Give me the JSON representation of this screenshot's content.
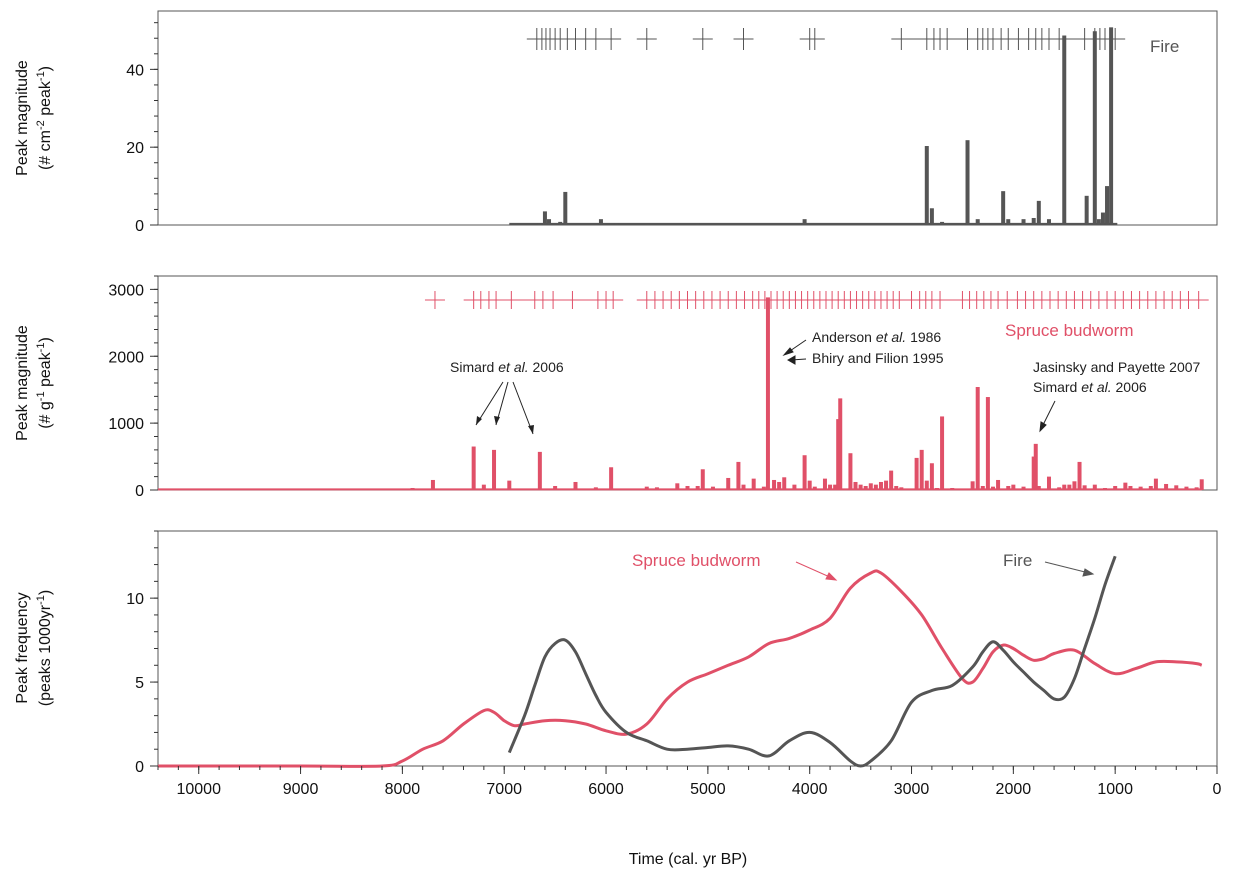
{
  "colors": {
    "fire": "#555555",
    "budworm": "#e05068",
    "text": "#111111"
  },
  "chart_data": [
    {
      "id": "fire-magnitude",
      "type": "bar",
      "ylabel_line1": "Peak magnitude",
      "ylabel_line2": "(# cm-2 peak-1)",
      "ylabel_parts": {
        "prefix": "(# cm",
        "sup1": "-2",
        "mid": " peak",
        "sup2": "-1",
        "suffix": ")"
      },
      "xlim": [
        10400,
        0
      ],
      "ylim": [
        0,
        55
      ],
      "yticks": [
        0,
        20,
        40
      ],
      "series_label": "Fire",
      "x": [
        6650,
        6600,
        6560,
        6450,
        6400,
        6050,
        5900,
        5600,
        5100,
        4050,
        2850,
        2800,
        2700,
        2650,
        2450,
        2350,
        2300,
        2250,
        2100,
        2050,
        1900,
        1800,
        1750,
        1650,
        1600,
        1500,
        1280,
        1200,
        1160,
        1120,
        1080,
        1040,
        1000
      ],
      "values": [
        0.5,
        3.5,
        1.5,
        0.8,
        8.5,
        1.5,
        0.5,
        0.5,
        0.5,
        1.5,
        20.3,
        4.3,
        0.8,
        0.5,
        21.8,
        1.5,
        0.5,
        0.5,
        8.7,
        1.5,
        1.5,
        1.8,
        6.2,
        1.5,
        0.5,
        48.7,
        7.5,
        49.8,
        1.5,
        3.2,
        10.0,
        50.8,
        0.5
      ],
      "baseline_range": [
        6950,
        980
      ],
      "event_marks": [
        6680,
        6630,
        6590,
        6550,
        6500,
        6450,
        6380,
        6300,
        6200,
        6100,
        5950,
        5600,
        5050,
        4650,
        4000,
        3950,
        3100,
        2850,
        2780,
        2720,
        2650,
        2450,
        2350,
        2300,
        2250,
        2200,
        2120,
        2050,
        1950,
        1850,
        1780,
        1720,
        1650,
        1550,
        1300,
        1200,
        1150,
        1100,
        1050,
        1000
      ]
    },
    {
      "id": "budworm-magnitude",
      "type": "bar",
      "ylabel_line1": "Peak magnitude",
      "ylabel_line2": "(# g-1 peak-1)",
      "ylabel_parts": {
        "prefix": "(# g",
        "sup1": "-1",
        "mid": " peak",
        "sup2": "-1",
        "suffix": ")"
      },
      "xlim": [
        10400,
        0
      ],
      "ylim": [
        0,
        3200
      ],
      "yticks": [
        0,
        1000,
        2000,
        3000
      ],
      "series_label": "Spruce budworm",
      "x": [
        7900,
        7700,
        7300,
        7200,
        7100,
        6950,
        6650,
        6500,
        6300,
        6100,
        5950,
        5600,
        5500,
        5300,
        5200,
        5100,
        5050,
        4950,
        4800,
        4700,
        4650,
        4550,
        4450,
        4410,
        4350,
        4300,
        4250,
        4150,
        4050,
        4000,
        3950,
        3850,
        3800,
        3750,
        3720,
        3700,
        3600,
        3550,
        3500,
        3450,
        3400,
        3350,
        3300,
        3250,
        3200,
        3150,
        3100,
        2950,
        2900,
        2850,
        2800,
        2750,
        2700,
        2600,
        2400,
        2350,
        2300,
        2250,
        2200,
        2150,
        2050,
        2000,
        1900,
        1800,
        1780,
        1750,
        1650,
        1550,
        1500,
        1450,
        1400,
        1350,
        1300,
        1200,
        1100,
        1000,
        900,
        850,
        750,
        650,
        600,
        500,
        400,
        300,
        200,
        150
      ],
      "values": [
        30,
        150,
        650,
        80,
        600,
        140,
        570,
        60,
        120,
        40,
        340,
        50,
        40,
        100,
        60,
        60,
        310,
        50,
        180,
        420,
        80,
        170,
        50,
        2880,
        150,
        120,
        190,
        80,
        520,
        140,
        50,
        170,
        80,
        80,
        1060,
        1370,
        550,
        120,
        80,
        60,
        100,
        80,
        120,
        140,
        290,
        60,
        40,
        480,
        600,
        140,
        400,
        30,
        1100,
        30,
        130,
        1540,
        60,
        1390,
        50,
        150,
        60,
        80,
        50,
        500,
        690,
        60,
        200,
        40,
        80,
        80,
        130,
        420,
        70,
        80,
        30,
        60,
        110,
        60,
        50,
        60,
        170,
        90,
        70,
        50,
        40,
        160
      ],
      "annotations": {
        "simard_a": "Simard",
        "simard_a_etal": "et al.",
        "simard_a_year": "2006",
        "anderson": "Anderson",
        "anderson_etal": "et al.",
        "anderson_year": "1986",
        "bhiry": "Bhiry and Filion 1995",
        "jasinsky": "Jasinsky and Payette 2007",
        "simard_b": "Simard",
        "simard_b_etal": "et al.",
        "simard_b_year": "2006"
      },
      "event_marks": [
        7680,
        7300,
        7230,
        7150,
        7080,
        6930,
        6700,
        6620,
        6520,
        6330,
        6080,
        6000,
        5930,
        5600,
        5520,
        5440,
        5360,
        5280,
        5200,
        5120,
        5040,
        4960,
        4880,
        4800,
        4720,
        4640,
        4560,
        4500,
        4440,
        4380,
        4320,
        4260,
        4200,
        4140,
        4080,
        4020,
        3960,
        3900,
        3840,
        3780,
        3720,
        3660,
        3600,
        3540,
        3480,
        3420,
        3360,
        3300,
        3240,
        3180,
        3120,
        3000,
        2920,
        2860,
        2800,
        2720,
        2500,
        2430,
        2360,
        2290,
        2220,
        2150,
        2060,
        1960,
        1880,
        1800,
        1720,
        1640,
        1560,
        1480,
        1400,
        1320,
        1240,
        1160,
        1080,
        1000,
        920,
        840,
        760,
        680,
        600,
        520,
        440,
        360,
        280,
        180
      ]
    },
    {
      "id": "peak-frequency",
      "type": "line",
      "xlabel": "Time (cal. yr BP)",
      "ylabel_line1": "Peak frequency",
      "ylabel_line2": "(peaks 1000yr-1)",
      "ylabel_parts": {
        "prefix": "(peaks 1000yr",
        "sup1": "-1",
        "mid": "",
        "sup2": "",
        "suffix": ")"
      },
      "xlim": [
        10400,
        0
      ],
      "ylim": [
        0,
        14
      ],
      "yticks": [
        0,
        5,
        10
      ],
      "xticks": [
        10000,
        9000,
        8000,
        7000,
        6000,
        5000,
        4000,
        3000,
        2000,
        1000,
        0
      ],
      "series": [
        {
          "name": "Spruce budworm",
          "x": [
            10400,
            9000,
            8200,
            8000,
            7800,
            7600,
            7400,
            7200,
            7100,
            7000,
            6900,
            6800,
            6600,
            6400,
            6200,
            6000,
            5800,
            5600,
            5400,
            5200,
            5000,
            4800,
            4600,
            4400,
            4200,
            4000,
            3800,
            3600,
            3400,
            3300,
            3100,
            2900,
            2700,
            2500,
            2400,
            2300,
            2200,
            2100,
            2000,
            1900,
            1800,
            1700,
            1600,
            1400,
            1200,
            1000,
            800,
            600,
            400,
            200,
            150
          ],
          "y": [
            0,
            0,
            0,
            0.3,
            1.0,
            1.5,
            2.5,
            3.3,
            3.2,
            2.7,
            2.4,
            2.5,
            2.7,
            2.7,
            2.5,
            2.1,
            1.9,
            2.5,
            4.0,
            5.0,
            5.5,
            6.0,
            6.5,
            7.3,
            7.6,
            8.1,
            8.8,
            10.6,
            11.5,
            11.5,
            10.4,
            9.0,
            7.0,
            5.2,
            5.0,
            5.8,
            6.8,
            7.2,
            7.0,
            6.6,
            6.3,
            6.4,
            6.7,
            6.9,
            6.1,
            5.5,
            5.8,
            6.2,
            6.2,
            6.1,
            6.0
          ],
          "label": "Spruce budworm"
        },
        {
          "name": "Fire",
          "x": [
            6950,
            6800,
            6700,
            6600,
            6500,
            6400,
            6300,
            6200,
            6100,
            6000,
            5800,
            5600,
            5400,
            5200,
            5000,
            4800,
            4600,
            4400,
            4200,
            4000,
            3800,
            3600,
            3500,
            3400,
            3200,
            3000,
            2800,
            2600,
            2400,
            2300,
            2200,
            2100,
            2000,
            1900,
            1800,
            1700,
            1600,
            1500,
            1400,
            1300,
            1200,
            1100,
            1000
          ],
          "y": [
            0.8,
            3.0,
            4.8,
            6.5,
            7.3,
            7.5,
            6.8,
            5.5,
            4.2,
            3.2,
            2.0,
            1.5,
            1.0,
            1.0,
            1.1,
            1.2,
            1.0,
            0.6,
            1.5,
            2.0,
            1.4,
            0.3,
            0.0,
            0.3,
            1.5,
            3.8,
            4.5,
            4.8,
            5.9,
            6.8,
            7.4,
            6.9,
            6.2,
            5.6,
            5.0,
            4.5,
            4.0,
            4.1,
            5.2,
            7.0,
            8.8,
            10.8,
            12.5
          ],
          "label": "Fire"
        }
      ]
    }
  ]
}
